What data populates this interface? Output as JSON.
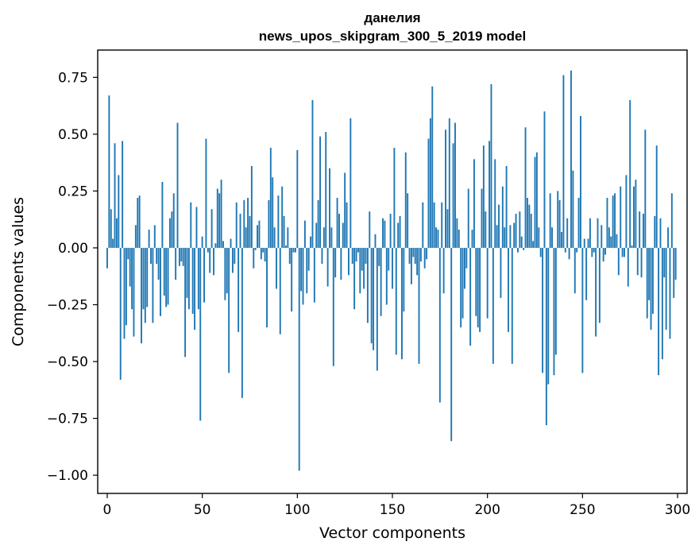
{
  "chart_data": {
    "type": "bar",
    "title": "данелия",
    "subtitle": "news_upos_skipgram_300_5_2019 model",
    "xlabel": "Vector components",
    "ylabel": "Components values",
    "xlim": [
      -5,
      305
    ],
    "ylim": [
      -1.08,
      0.87
    ],
    "xticks": [
      0,
      50,
      100,
      150,
      200,
      250,
      300
    ],
    "yticks": [
      0.75,
      0.5,
      0.25,
      0.0,
      -0.25,
      -0.5,
      -0.75,
      -1.0
    ],
    "ytick_labels": [
      "0.75",
      "0.50",
      "0.25",
      "0.00",
      "−0.25",
      "−0.50",
      "−0.75",
      "−1.00"
    ],
    "bar_color": "#1f77b4",
    "x": [
      0,
      1,
      2,
      3,
      4,
      5,
      6,
      7,
      8,
      9,
      10,
      11,
      12,
      13,
      14,
      15,
      16,
      17,
      18,
      19,
      20,
      21,
      22,
      23,
      24,
      25,
      26,
      27,
      28,
      29,
      30,
      31,
      32,
      33,
      34,
      35,
      36,
      37,
      38,
      39,
      40,
      41,
      42,
      43,
      44,
      45,
      46,
      47,
      48,
      49,
      50,
      51,
      52,
      53,
      54,
      55,
      56,
      57,
      58,
      59,
      60,
      61,
      62,
      63,
      64,
      65,
      66,
      67,
      68,
      69,
      70,
      71,
      72,
      73,
      74,
      75,
      76,
      77,
      78,
      79,
      80,
      81,
      82,
      83,
      84,
      85,
      86,
      87,
      88,
      89,
      90,
      91,
      92,
      93,
      94,
      95,
      96,
      97,
      98,
      99,
      100,
      101,
      102,
      103,
      104,
      105,
      106,
      107,
      108,
      109,
      110,
      111,
      112,
      113,
      114,
      115,
      116,
      117,
      118,
      119,
      120,
      121,
      122,
      123,
      124,
      125,
      126,
      127,
      128,
      129,
      130,
      131,
      132,
      133,
      134,
      135,
      136,
      137,
      138,
      139,
      140,
      141,
      142,
      143,
      144,
      145,
      146,
      147,
      148,
      149,
      150,
      151,
      152,
      153,
      154,
      155,
      156,
      157,
      158,
      159,
      160,
      161,
      162,
      163,
      164,
      165,
      166,
      167,
      168,
      169,
      170,
      171,
      172,
      173,
      174,
      175,
      176,
      177,
      178,
      179,
      180,
      181,
      182,
      183,
      184,
      185,
      186,
      187,
      188,
      189,
      190,
      191,
      192,
      193,
      194,
      195,
      196,
      197,
      198,
      199,
      200,
      201,
      202,
      203,
      204,
      205,
      206,
      207,
      208,
      209,
      210,
      211,
      212,
      213,
      214,
      215,
      216,
      217,
      218,
      219,
      220,
      221,
      222,
      223,
      224,
      225,
      226,
      227,
      228,
      229,
      230,
      231,
      232,
      233,
      234,
      235,
      236,
      237,
      238,
      239,
      240,
      241,
      242,
      243,
      244,
      245,
      246,
      247,
      248,
      249,
      250,
      251,
      252,
      253,
      254,
      255,
      256,
      257,
      258,
      259,
      260,
      261,
      262,
      263,
      264,
      265,
      266,
      267,
      268,
      269,
      270,
      271,
      272,
      273,
      274,
      275,
      276,
      277,
      278,
      279,
      280,
      281,
      282,
      283,
      284,
      285,
      286,
      287,
      288,
      289,
      290,
      291,
      292,
      293,
      294,
      295,
      296,
      297,
      298,
      299
    ],
    "values": [
      -0.09,
      0.67,
      0.17,
      0.04,
      0.46,
      0.13,
      0.32,
      -0.58,
      0.47,
      -0.4,
      -0.34,
      -0.05,
      -0.17,
      -0.27,
      -0.39,
      0.1,
      0.22,
      0.23,
      -0.42,
      -0.27,
      -0.33,
      -0.26,
      0.08,
      -0.07,
      -0.33,
      0.1,
      -0.07,
      -0.14,
      -0.3,
      0.29,
      -0.21,
      -0.26,
      -0.25,
      0.13,
      0.16,
      0.24,
      -0.14,
      0.55,
      -0.08,
      -0.06,
      -0.08,
      -0.48,
      -0.22,
      -0.27,
      0.2,
      -0.29,
      -0.36,
      0.18,
      -0.27,
      -0.76,
      0.05,
      -0.24,
      0.48,
      -0.02,
      -0.11,
      0.17,
      -0.12,
      0.02,
      0.26,
      0.24,
      0.3,
      0.03,
      -0.23,
      -0.2,
      -0.55,
      0.04,
      -0.11,
      -0.07,
      0.2,
      -0.37,
      0.15,
      -0.66,
      0.21,
      0.09,
      0.22,
      0.14,
      0.36,
      -0.09,
      -0.01,
      0.1,
      0.12,
      -0.05,
      -0.02,
      -0.06,
      -0.35,
      0.21,
      0.44,
      0.31,
      0.09,
      -0.18,
      0.23,
      -0.38,
      0.27,
      0.14,
      0.01,
      0.09,
      -0.07,
      -0.28,
      -0.02,
      -0.02,
      0.43,
      -0.98,
      -0.19,
      -0.25,
      0.12,
      -0.2,
      -0.1,
      0.05,
      0.65,
      -0.24,
      0.11,
      0.21,
      0.49,
      -0.07,
      0.09,
      0.51,
      -0.17,
      0.35,
      0.09,
      -0.52,
      -0.13,
      0.22,
      0.15,
      -0.14,
      0.11,
      0.33,
      0.2,
      -0.12,
      0.57,
      -0.07,
      -0.27,
      -0.06,
      -0.02,
      -0.2,
      -0.1,
      -0.18,
      -0.07,
      -0.33,
      0.16,
      -0.42,
      -0.45,
      0.06,
      -0.54,
      -0.08,
      -0.3,
      0.13,
      0.12,
      -0.25,
      -0.1,
      0.15,
      -0.18,
      0.44,
      -0.47,
      0.11,
      0.14,
      -0.49,
      -0.28,
      0.42,
      0.24,
      -0.07,
      -0.16,
      -0.04,
      -0.07,
      -0.12,
      -0.51,
      -0.06,
      0.2,
      -0.09,
      -0.05,
      0.48,
      0.57,
      0.71,
      0.2,
      0.09,
      0.08,
      -0.68,
      0.2,
      -0.2,
      0.52,
      0.17,
      0.57,
      -0.85,
      0.46,
      0.55,
      0.13,
      0.08,
      -0.35,
      -0.31,
      -0.18,
      -0.09,
      0.26,
      -0.43,
      0.08,
      0.39,
      -0.3,
      -0.35,
      -0.37,
      0.26,
      0.45,
      0.16,
      -0.31,
      0.47,
      0.72,
      -0.51,
      0.39,
      0.1,
      0.19,
      -0.22,
      0.27,
      0.09,
      0.36,
      -0.37,
      0.1,
      -0.51,
      0.11,
      0.15,
      -0.02,
      0.16,
      0.05,
      -0.01,
      0.53,
      0.22,
      0.19,
      0.15,
      0.03,
      0.4,
      0.42,
      0.09,
      -0.04,
      -0.55,
      0.6,
      -0.78,
      -0.6,
      0.24,
      0.09,
      -0.56,
      -0.47,
      0.25,
      0.21,
      0.07,
      0.76,
      -0.02,
      0.13,
      -0.05,
      0.78,
      0.34,
      -0.2,
      -0.02,
      0.22,
      0.58,
      -0.55,
      0.04,
      -0.23,
      0.04,
      0.13,
      -0.04,
      -0.02,
      -0.39,
      0.13,
      -0.33,
      0.1,
      -0.06,
      -0.03,
      0.22,
      0.09,
      0.05,
      0.23,
      0.24,
      0.06,
      -0.12,
      0.27,
      -0.04,
      -0.04,
      0.32,
      -0.17,
      0.65,
      0.01,
      0.27,
      0.3,
      -0.12,
      0.16,
      -0.13,
      0.15,
      0.52,
      -0.31,
      -0.23,
      -0.36,
      -0.29,
      0.14,
      0.45,
      -0.56,
      0.13,
      -0.49,
      -0.13,
      -0.36,
      0.09,
      -0.4,
      0.24,
      -0.22,
      -0.14
    ]
  }
}
